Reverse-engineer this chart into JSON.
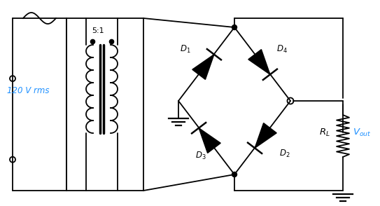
{
  "background_color": "#ffffff",
  "line_color": "#000000",
  "label_color_blue": "#1E90FF",
  "label_120V": "120 V rms",
  "label_ratio": "5:1",
  "fig_width": 5.43,
  "fig_height": 2.94,
  "dpi": 100
}
